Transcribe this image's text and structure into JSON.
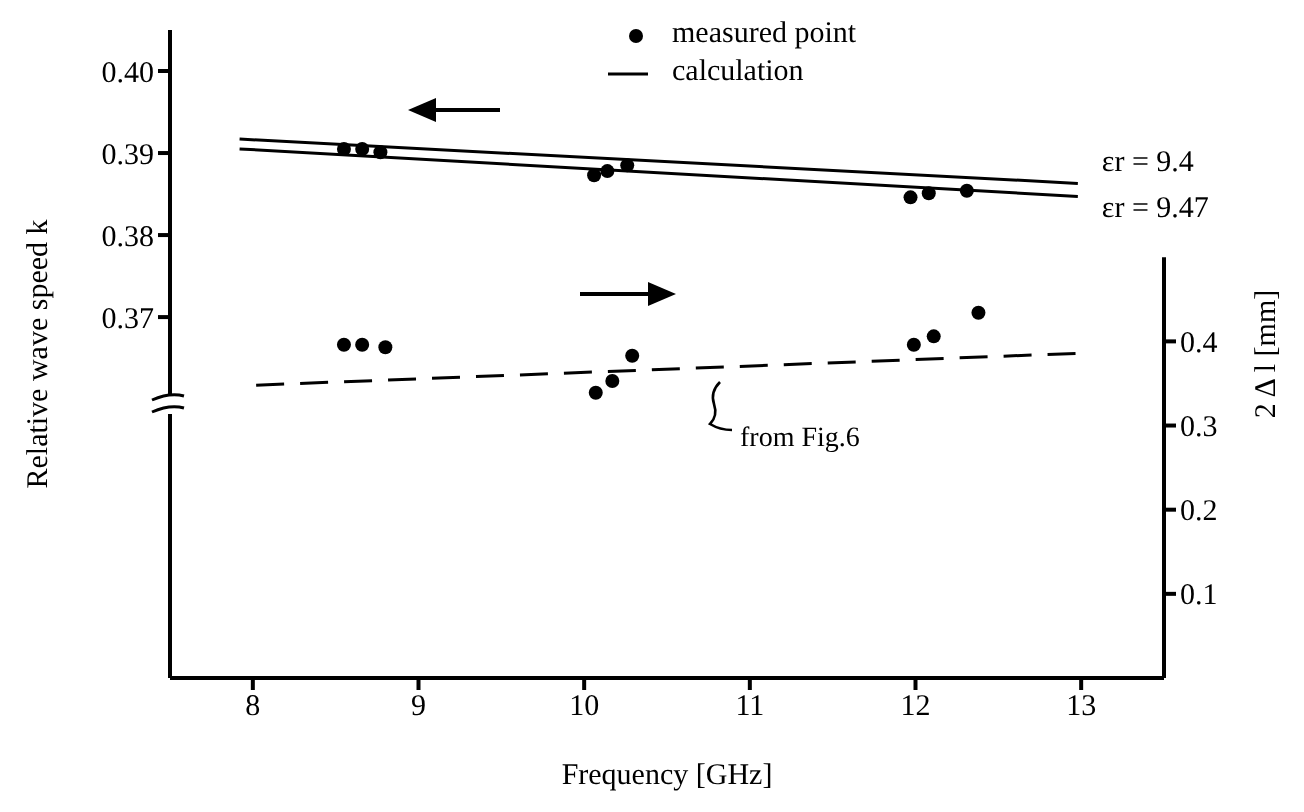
{
  "chart_data": {
    "type": "scatter",
    "xlabel": "Frequency  [GHz]",
    "ylabel": "Relative wave speed  k",
    "y2label": "2 Δ l  [mm]",
    "xlim": [
      7.5,
      13.5
    ],
    "xticks": [
      8,
      9,
      10,
      11,
      12,
      13
    ],
    "ylim": [
      0.326,
      0.405
    ],
    "yticks": [
      0.37,
      0.38,
      0.39,
      {
        "value": 0.4,
        "label": "0.40"
      }
    ],
    "y2lim": [
      0,
      0.77
    ],
    "y2ticks": [
      0.1,
      0.2,
      0.3,
      0.4
    ],
    "legend": "top right",
    "series": [
      {
        "name": "measured point",
        "marker": "circle",
        "color": "#000000",
        "x": [
          8.55,
          8.66,
          8.77,
          10.06,
          10.14,
          10.26,
          11.97,
          12.08,
          12.31
        ],
        "values": [
          0.3905,
          0.3905,
          0.3901,
          0.3873,
          0.3878,
          0.3885,
          0.3846,
          0.3851,
          0.3854
        ]
      },
      {
        "name": "calculation",
        "type": "line",
        "color": "#000000",
        "line_style": "solid",
        "x": [
          7.92,
          12.98
        ],
        "values": [
          0.3917,
          0.3863
        ]
      },
      {
        "type": "line",
        "color": "#000000",
        "line_style": "solid",
        "x": [
          7.92,
          12.98
        ],
        "values": [
          0.3905,
          0.3847
        ]
      },
      {
        "marker": "circle",
        "axis": "y2",
        "color": "#000000",
        "x": [
          8.55,
          8.66,
          8.8,
          10.07,
          10.17,
          10.29,
          11.99,
          12.11,
          12.38
        ],
        "values": [
          0.396,
          0.396,
          0.393,
          0.339,
          0.353,
          0.383,
          0.396,
          0.406,
          0.434
        ]
      },
      {
        "type": "line",
        "axis": "y2",
        "color": "#000000",
        "line_style": "dashed",
        "x": [
          8.02,
          13
        ],
        "values": [
          0.348,
          0.386
        ]
      }
    ],
    "annotations": [
      {
        "text": "εr = 9.4",
        "x": 12.98,
        "y": 0.3863
      },
      {
        "text": "εr = 9.47",
        "x": 12.98,
        "y": 0.3847
      },
      "from Fig.6"
    ]
  }
}
